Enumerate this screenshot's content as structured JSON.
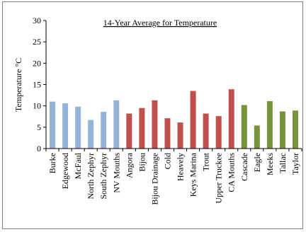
{
  "chart_data": {
    "type": "bar",
    "title": "14-Year Average  for Temperature",
    "ylabel": "Temperature °C",
    "xlabel": "",
    "ylim": [
      0,
      30
    ],
    "yticks": [
      0,
      5,
      10,
      15,
      20,
      25,
      30
    ],
    "grid": false,
    "legend": "none",
    "categories": [
      "Burke",
      "Edgewood",
      "McFaul",
      "North Zephyr",
      "South Zephyr",
      "NV Mouths",
      "Angora",
      "Bijou",
      "Bijou Drainage",
      "Cold",
      "Heavely",
      "Keys Marina",
      "Trout",
      "Upper Truckee",
      "CA Mouths",
      "Cascade",
      "Eagle",
      "Meeks",
      "Tallac",
      "Taylor"
    ],
    "values": [
      11.0,
      10.6,
      9.8,
      6.7,
      8.6,
      11.3,
      8.2,
      9.5,
      11.3,
      7.1,
      6.1,
      13.5,
      8.2,
      7.6,
      13.9,
      10.2,
      5.4,
      11.1,
      8.7,
      8.9
    ],
    "bar_colors": [
      "#95b3d7",
      "#95b3d7",
      "#95b3d7",
      "#95b3d7",
      "#95b3d7",
      "#95b3d7",
      "#c0504d",
      "#c0504d",
      "#c0504d",
      "#c0504d",
      "#c0504d",
      "#c0504d",
      "#c0504d",
      "#c0504d",
      "#c0504d",
      "#77933c",
      "#77933c",
      "#77933c",
      "#77933c",
      "#77933c"
    ]
  }
}
